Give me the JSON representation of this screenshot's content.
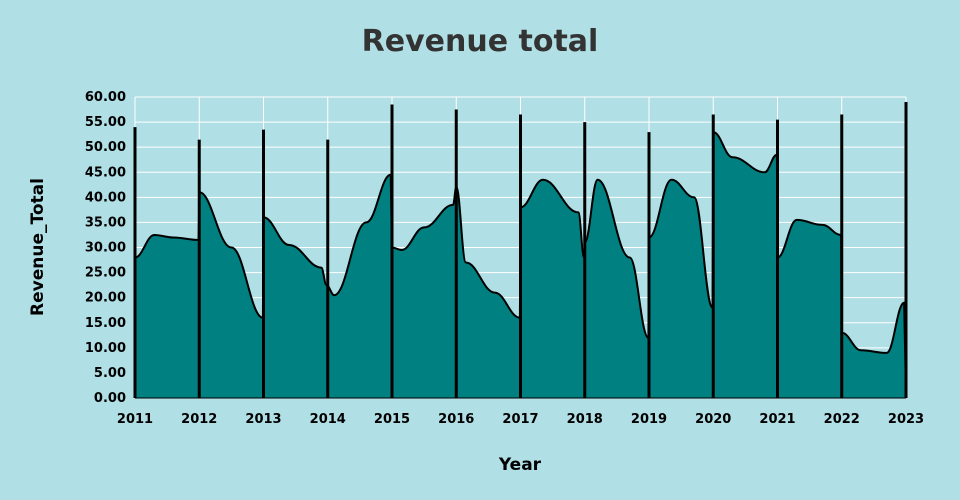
{
  "chart_data": {
    "type": "area",
    "title": "Revenue total",
    "xlabel": "Year",
    "ylabel": "Revenue_Total",
    "ylim": [
      0,
      60
    ],
    "yticks": [
      "0.00",
      "5.00",
      "10.00",
      "15.00",
      "20.00",
      "25.00",
      "30.00",
      "35.00",
      "40.00",
      "45.00",
      "50.00",
      "55.00",
      "60.00"
    ],
    "xticks": [
      "2011",
      "2012",
      "2013",
      "2014",
      "2015",
      "2016",
      "2017",
      "2018",
      "2019",
      "2020",
      "2021",
      "2022",
      "2023"
    ],
    "grid": true,
    "fill_color": "#008080",
    "line_color": "#000000",
    "x": [
      2011,
      2011.001,
      2011.3,
      2011.6,
      2011.99,
      2012,
      2012.5,
      2012.99,
      2013,
      2013.4,
      2013.9,
      2013.98,
      2014.1,
      2014.6,
      2014.98,
      2015,
      2015.15,
      2015.5,
      2015.95,
      2016,
      2016.15,
      2016.6,
      2016.99,
      2017,
      2017.35,
      2017.9,
      2017.99,
      2018,
      2018.2,
      2018.7,
      2018.99,
      2019,
      2019.35,
      2019.7,
      2019.99,
      2020,
      2020.3,
      2020.8,
      2020.99,
      2021,
      2021.3,
      2021.7,
      2021.99,
      2022,
      2022.3,
      2022.7,
      2022.97,
      2023
    ],
    "y": [
      13,
      28,
      32.5,
      32,
      31.5,
      41,
      30,
      16,
      36,
      30.5,
      26,
      22.5,
      20.5,
      35,
      44.5,
      30,
      29.5,
      34,
      38.5,
      42,
      27,
      21,
      16,
      38,
      43.5,
      37,
      28,
      31,
      43.5,
      28,
      12,
      32,
      43.5,
      40,
      18,
      53,
      48,
      45,
      48.5,
      28,
      35.5,
      34.5,
      32.5,
      13,
      9.5,
      9,
      19,
      1
    ]
  }
}
